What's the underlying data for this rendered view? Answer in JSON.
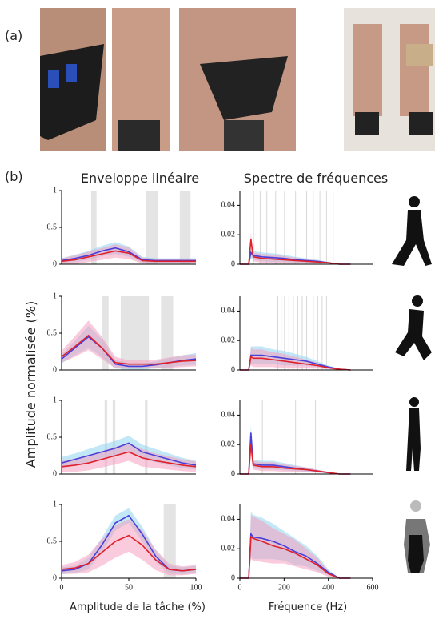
{
  "figure": {
    "panel_a": "(a)",
    "panel_b": "(b)",
    "col1_title": "Enveloppe linéaire",
    "col2_title": "Spectre de fréquences",
    "ylabel": "Amplitude normalisée (%)",
    "xlabel_left": "Amplitude de la tâche (%)",
    "xlabel_right": "Fréquence (Hz)"
  },
  "chart_data": [
    {
      "type": "line",
      "x": [
        0,
        10,
        20,
        30,
        40,
        50,
        60,
        70,
        80,
        90,
        100
      ],
      "xlim": [
        0,
        100
      ],
      "ylim": [
        0,
        1
      ],
      "yticks": [
        0,
        0.5,
        1
      ],
      "highlights": [
        [
          22,
          26
        ],
        [
          63,
          72
        ],
        [
          88,
          96
        ]
      ],
      "series": [
        {
          "color": "#8fd3f0",
          "line_color": "#4a3fd8",
          "values": [
            0.05,
            0.08,
            0.12,
            0.18,
            0.22,
            0.17,
            0.06,
            0.05,
            0.05,
            0.05,
            0.05
          ],
          "spread": [
            0.03,
            0.05,
            0.06,
            0.07,
            0.08,
            0.07,
            0.04,
            0.03,
            0.03,
            0.03,
            0.03
          ]
        },
        {
          "color": "#f4a0c0",
          "line_color": "#e0202a",
          "values": [
            0.04,
            0.06,
            0.1,
            0.14,
            0.18,
            0.15,
            0.05,
            0.04,
            0.04,
            0.04,
            0.04
          ],
          "spread": [
            0.04,
            0.06,
            0.07,
            0.08,
            0.09,
            0.08,
            0.04,
            0.03,
            0.03,
            0.03,
            0.03
          ]
        }
      ]
    },
    {
      "type": "line",
      "x": [
        0,
        40,
        50,
        60,
        100,
        150,
        200,
        250,
        300,
        350,
        400,
        450,
        500
      ],
      "xlim": [
        0,
        600
      ],
      "ylim": [
        0,
        0.05
      ],
      "yticks": [
        0,
        0.02,
        0.04
      ],
      "highlights": [
        [
          60,
          62
        ],
        [
          90,
          92
        ],
        [
          120,
          122
        ],
        [
          160,
          162
        ],
        [
          200,
          202
        ],
        [
          250,
          252
        ],
        [
          300,
          302
        ],
        [
          330,
          332
        ],
        [
          360,
          362
        ],
        [
          390,
          392
        ],
        [
          420,
          422
        ]
      ],
      "series": [
        {
          "color": "#8fd3f0",
          "line_color": "#4a3fd8",
          "values": [
            0,
            0,
            0.008,
            0.006,
            0.005,
            0.0045,
            0.004,
            0.003,
            0.0025,
            0.002,
            0.001,
            0,
            0
          ],
          "spread": [
            0,
            0,
            0.004,
            0.003,
            0.003,
            0.003,
            0.0025,
            0.002,
            0.0015,
            0.001,
            0.0005,
            0,
            0
          ]
        },
        {
          "color": "#f4a0c0",
          "line_color": "#e0202a",
          "values": [
            0,
            0,
            0.017,
            0.005,
            0.004,
            0.0035,
            0.003,
            0.0025,
            0.002,
            0.0015,
            0.001,
            0,
            0
          ],
          "spread": [
            0,
            0,
            0.004,
            0.003,
            0.003,
            0.003,
            0.0025,
            0.002,
            0.0015,
            0.001,
            0.0005,
            0,
            0
          ]
        }
      ]
    },
    {
      "type": "line",
      "x": [
        0,
        10,
        20,
        30,
        40,
        50,
        60,
        70,
        80,
        90,
        100
      ],
      "xlim": [
        0,
        100
      ],
      "ylim": [
        0,
        1
      ],
      "yticks": [
        0,
        0.5,
        1
      ],
      "highlights": [
        [
          30,
          35
        ],
        [
          44,
          65
        ],
        [
          74,
          83
        ]
      ],
      "series": [
        {
          "color": "#8fd3f0",
          "line_color": "#4a3fd8",
          "values": [
            0.15,
            0.3,
            0.45,
            0.3,
            0.08,
            0.05,
            0.05,
            0.07,
            0.1,
            0.13,
            0.15
          ],
          "spread": [
            0.06,
            0.1,
            0.15,
            0.12,
            0.06,
            0.04,
            0.04,
            0.05,
            0.06,
            0.07,
            0.08
          ]
        },
        {
          "color": "#f4a0c0",
          "line_color": "#e0202a",
          "values": [
            0.18,
            0.32,
            0.47,
            0.3,
            0.1,
            0.08,
            0.08,
            0.08,
            0.1,
            0.12,
            0.13
          ],
          "spread": [
            0.08,
            0.14,
            0.2,
            0.15,
            0.08,
            0.05,
            0.05,
            0.06,
            0.07,
            0.08,
            0.08
          ]
        }
      ]
    },
    {
      "type": "line",
      "x": [
        0,
        40,
        50,
        60,
        100,
        150,
        200,
        250,
        300,
        350,
        400,
        450,
        500
      ],
      "xlim": [
        0,
        600
      ],
      "ylim": [
        0,
        0.05
      ],
      "yticks": [
        0,
        0.02,
        0.04
      ],
      "highlights": [
        [
          170,
          172
        ],
        [
          185,
          187
        ],
        [
          200,
          202
        ],
        [
          220,
          222
        ],
        [
          240,
          242
        ],
        [
          260,
          262
        ],
        [
          280,
          282
        ],
        [
          300,
          302
        ],
        [
          330,
          332
        ],
        [
          350,
          352
        ],
        [
          370,
          372
        ],
        [
          390,
          392
        ]
      ],
      "series": [
        {
          "color": "#8fd3f0",
          "line_color": "#4a3fd8",
          "values": [
            0,
            0,
            0.01,
            0.01,
            0.01,
            0.009,
            0.008,
            0.007,
            0.006,
            0.004,
            0.002,
            0.0005,
            0
          ],
          "spread": [
            0,
            0,
            0.006,
            0.006,
            0.006,
            0.005,
            0.005,
            0.004,
            0.003,
            0.002,
            0.001,
            0.0005,
            0
          ]
        },
        {
          "color": "#f4a0c0",
          "line_color": "#e0202a",
          "values": [
            0,
            0,
            0.009,
            0.008,
            0.008,
            0.007,
            0.006,
            0.005,
            0.004,
            0.003,
            0.0015,
            0.0005,
            0
          ],
          "spread": [
            0,
            0,
            0.006,
            0.006,
            0.006,
            0.005,
            0.005,
            0.004,
            0.003,
            0.002,
            0.001,
            0.0005,
            0
          ]
        }
      ]
    },
    {
      "type": "line",
      "x": [
        0,
        10,
        20,
        30,
        40,
        50,
        60,
        70,
        80,
        90,
        100
      ],
      "xlim": [
        0,
        100
      ],
      "ylim": [
        0,
        1
      ],
      "yticks": [
        0,
        0.5,
        1
      ],
      "highlights": [
        [
          32,
          34
        ],
        [
          38,
          40
        ],
        [
          62,
          64
        ]
      ],
      "series": [
        {
          "color": "#8fd3f0",
          "line_color": "#4a3fd8",
          "values": [
            0.15,
            0.2,
            0.25,
            0.3,
            0.35,
            0.42,
            0.3,
            0.25,
            0.2,
            0.15,
            0.12
          ],
          "spread": [
            0.08,
            0.08,
            0.09,
            0.1,
            0.1,
            0.1,
            0.1,
            0.09,
            0.08,
            0.07,
            0.06
          ]
        },
        {
          "color": "#f4a0c0",
          "line_color": "#e0202a",
          "values": [
            0.1,
            0.12,
            0.15,
            0.2,
            0.25,
            0.3,
            0.22,
            0.18,
            0.15,
            0.12,
            0.1
          ],
          "spread": [
            0.08,
            0.09,
            0.1,
            0.11,
            0.12,
            0.12,
            0.12,
            0.1,
            0.09,
            0.08,
            0.07
          ]
        }
      ]
    },
    {
      "type": "line",
      "x": [
        0,
        40,
        50,
        60,
        100,
        150,
        200,
        250,
        300,
        350,
        400,
        450,
        500
      ],
      "xlim": [
        0,
        600
      ],
      "ylim": [
        0,
        0.05
      ],
      "yticks": [
        0,
        0.02,
        0.04
      ],
      "highlights": [
        [
          100,
          101
        ],
        [
          250,
          251
        ],
        [
          340,
          341
        ]
      ],
      "series": [
        {
          "color": "#8fd3f0",
          "line_color": "#4a3fd8",
          "values": [
            0,
            0,
            0.028,
            0.007,
            0.006,
            0.006,
            0.005,
            0.004,
            0.003,
            0.002,
            0.001,
            0,
            0
          ],
          "spread": [
            0,
            0,
            0.005,
            0.003,
            0.003,
            0.003,
            0.0025,
            0.002,
            0.0015,
            0.001,
            0.0005,
            0,
            0
          ]
        },
        {
          "color": "#f4a0c0",
          "line_color": "#e0202a",
          "values": [
            0,
            0,
            0.02,
            0.006,
            0.005,
            0.005,
            0.004,
            0.0035,
            0.003,
            0.002,
            0.001,
            0,
            0
          ],
          "spread": [
            0,
            0,
            0.005,
            0.003,
            0.003,
            0.003,
            0.0025,
            0.002,
            0.0015,
            0.001,
            0.0005,
            0,
            0
          ]
        }
      ]
    },
    {
      "type": "line",
      "x": [
        0,
        10,
        20,
        30,
        40,
        50,
        60,
        70,
        80,
        90,
        100
      ],
      "xlim": [
        0,
        100
      ],
      "ylim": [
        0,
        1
      ],
      "yticks": [
        0,
        0.5,
        1
      ],
      "xticks": [
        0,
        50,
        100
      ],
      "highlights": [
        [
          76,
          85
        ]
      ],
      "series": [
        {
          "color": "#8fd3f0",
          "line_color": "#4a3fd8",
          "values": [
            0.1,
            0.12,
            0.2,
            0.45,
            0.75,
            0.85,
            0.6,
            0.3,
            0.12,
            0.1,
            0.12
          ],
          "spread": [
            0.05,
            0.05,
            0.08,
            0.1,
            0.1,
            0.1,
            0.1,
            0.08,
            0.05,
            0.05,
            0.05
          ]
        },
        {
          "color": "#f4a0c0",
          "line_color": "#e0202a",
          "values": [
            0.12,
            0.14,
            0.2,
            0.35,
            0.5,
            0.58,
            0.45,
            0.25,
            0.12,
            0.1,
            0.12
          ],
          "spread": [
            0.06,
            0.08,
            0.12,
            0.18,
            0.22,
            0.22,
            0.2,
            0.14,
            0.08,
            0.06,
            0.06
          ]
        }
      ]
    },
    {
      "type": "line",
      "x": [
        0,
        40,
        50,
        60,
        100,
        150,
        200,
        250,
        300,
        350,
        400,
        450,
        500
      ],
      "xlim": [
        0,
        600
      ],
      "ylim": [
        0,
        0.05
      ],
      "yticks": [
        0,
        0.02,
        0.04
      ],
      "xticks": [
        0,
        200,
        400,
        600
      ],
      "highlights": [],
      "series": [
        {
          "color": "#8fd3f0",
          "line_color": "#4a3fd8",
          "values": [
            0,
            0,
            0.03,
            0.028,
            0.027,
            0.025,
            0.022,
            0.018,
            0.015,
            0.01,
            0.004,
            0,
            0
          ],
          "spread": [
            0,
            0,
            0.015,
            0.015,
            0.014,
            0.012,
            0.01,
            0.009,
            0.007,
            0.005,
            0.002,
            0,
            0
          ]
        },
        {
          "color": "#f4a0c0",
          "line_color": "#e0202a",
          "values": [
            0,
            0,
            0.028,
            0.027,
            0.025,
            0.022,
            0.02,
            0.017,
            0.013,
            0.009,
            0.003,
            0,
            0
          ],
          "spread": [
            0,
            0,
            0.015,
            0.015,
            0.014,
            0.012,
            0.01,
            0.009,
            0.007,
            0.005,
            0.002,
            0,
            0
          ]
        }
      ]
    }
  ]
}
